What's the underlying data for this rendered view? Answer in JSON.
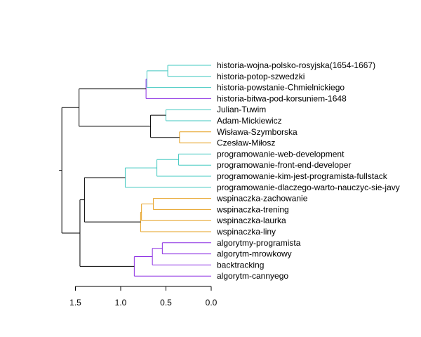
{
  "chart_data": {
    "type": "dendrogram",
    "orientation": "horizontal",
    "xlim": [
      0,
      1.5
    ],
    "x_ticks": [
      1.5,
      1.0,
      0.5,
      0.0
    ],
    "x_tick_labels": [
      "1.5",
      "1.0",
      "0.5",
      "0.0"
    ],
    "colors": {
      "cyan": "#40c8c0",
      "purple": "#8a2be2",
      "orange": "#e6a020",
      "black": "#000000"
    },
    "leaves": [
      "historia-wojna-polsko-rosyjska(1654-1667)",
      "historia-potop-szwedzki",
      "historia-powstanie-Chmielnickiego",
      "historia-bitwa-pod-korsuniem-1648",
      "Julian-Tuwim",
      "Adam-Mickiewicz",
      "Wisława-Szymborska",
      "Czesław-Miłosz",
      "programowanie-web-development",
      "programowanie-front-end-developer",
      "programowanie-kim-jest-programista-fullstack",
      "programowanie-dlaczego-warto-nauczyc-sie-javy",
      "wspinaczka-zachowanie",
      "wspinaczka-trening",
      "wspinaczka-laurka",
      "wspinaczka-liny",
      "algorytmy-programista",
      "algorytm-mrowkowy",
      "backtracking",
      "algorytm-cannyego"
    ],
    "leaf_colors": [
      "cyan",
      "purple",
      "cyan",
      "purple",
      "cyan",
      "purple",
      "orange",
      "purple",
      "cyan",
      "cyan",
      "cyan",
      "cyan",
      "orange",
      "orange",
      "orange",
      "orange",
      "purple",
      "purple",
      "purple",
      "purple"
    ],
    "merges": [
      {
        "id": "m1",
        "height": 0.48,
        "left": "L0",
        "right": "L1",
        "color": "cyan"
      },
      {
        "id": "m2",
        "height": 0.71,
        "left": "m1",
        "right": "L2",
        "color": "cyan"
      },
      {
        "id": "m3",
        "height": 0.72,
        "left": "m2",
        "right": "L3",
        "color": "purple"
      },
      {
        "id": "m4",
        "height": 0.5,
        "left": "L4",
        "right": "L5",
        "color": "cyan"
      },
      {
        "id": "m5",
        "height": 0.35,
        "left": "L6",
        "right": "L7",
        "color": "orange"
      },
      {
        "id": "m6",
        "height": 0.67,
        "left": "m4",
        "right": "m5",
        "color": "black"
      },
      {
        "id": "m7",
        "height": 1.46,
        "left": "m3",
        "right": "m6",
        "color": "black"
      },
      {
        "id": "m8",
        "height": 0.36,
        "left": "L8",
        "right": "L9",
        "color": "cyan"
      },
      {
        "id": "m9",
        "height": 0.6,
        "left": "m8",
        "right": "L10",
        "color": "cyan"
      },
      {
        "id": "m10",
        "height": 0.95,
        "left": "m9",
        "right": "L11",
        "color": "cyan"
      },
      {
        "id": "m11",
        "height": 0.64,
        "left": "L12",
        "right": "L13",
        "color": "orange"
      },
      {
        "id": "m12",
        "height": 0.77,
        "left": "m11",
        "right": "L14",
        "color": "orange"
      },
      {
        "id": "m13",
        "height": 0.78,
        "left": "m12",
        "right": "L15",
        "color": "orange"
      },
      {
        "id": "m14",
        "height": 1.4,
        "left": "m10",
        "right": "m13",
        "color": "black"
      },
      {
        "id": "m15",
        "height": 0.54,
        "left": "L16",
        "right": "L17",
        "color": "purple"
      },
      {
        "id": "m16",
        "height": 0.65,
        "left": "m15",
        "right": "L18",
        "color": "purple"
      },
      {
        "id": "m17",
        "height": 0.85,
        "left": "m16",
        "right": "L19",
        "color": "purple"
      },
      {
        "id": "m18",
        "height": 1.45,
        "left": "m14",
        "right": "m17",
        "color": "black"
      },
      {
        "id": "m19",
        "height": 1.65,
        "left": "m7",
        "right": "m18",
        "color": "black"
      }
    ]
  }
}
